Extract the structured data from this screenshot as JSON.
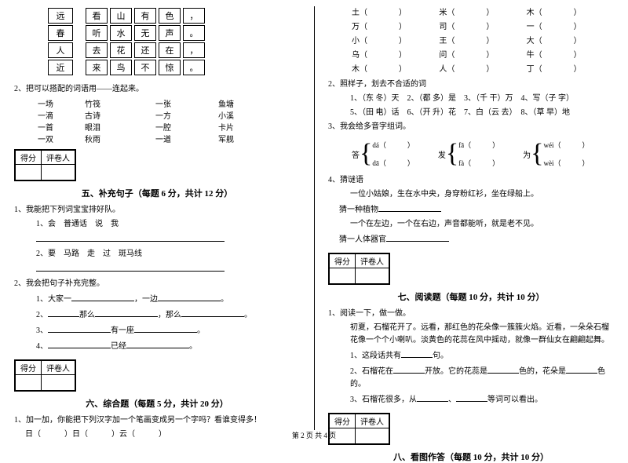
{
  "grid": {
    "rows": [
      {
        "lead": "远",
        "cells": [
          "看",
          "山",
          "有",
          "色",
          "，"
        ]
      },
      {
        "lead": "春",
        "cells": [
          "听",
          "水",
          "无",
          "声",
          "。"
        ]
      },
      {
        "lead": "人",
        "cells": [
          "去",
          "花",
          "还",
          "在",
          "，"
        ]
      },
      {
        "lead": "近",
        "cells": [
          "来",
          "鸟",
          "不",
          "惊",
          "。"
        ]
      }
    ]
  },
  "q2": {
    "title": "2、把可以搭配的词语用——连起来。",
    "rows": [
      [
        "一场",
        "竹筏",
        "一张",
        "鱼塘"
      ],
      [
        "一滴",
        "古诗",
        "一方",
        "小溪"
      ],
      [
        "一首",
        "眼泪",
        "一腔",
        "卡片"
      ],
      [
        "一双",
        "秋雨",
        "一道",
        "军舰"
      ]
    ]
  },
  "sec5": {
    "title": "五、补充句子（每题 6 分，共计 12 分）",
    "q1": "1、我能把下列词宝宝排好队。",
    "q1a": "1、会　普通话　说　我",
    "q1b": "2、要　马路　走　过　斑马线",
    "q2": "2、我会把句子补充完整。",
    "q2_1a": "1、大家一",
    "q2_1b": "，一边",
    "q2_2a": "2、",
    "q2_2b": "那么",
    "q2_2c": "，",
    "q2_2d": "那么",
    "q2_3a": "3、",
    "q2_3b": "有一座",
    "q2_4a": "4、",
    "q2_4b": "已经"
  },
  "sec6": {
    "title": "六、综合题（每题 5 分，共计 20 分）",
    "q1": "1、加一加，你能把下列汉字加一个笔画变成另一个字吗？看谁变得多！",
    "q1l": "日（　　　）日（　　　）云（　　　）"
  },
  "right": {
    "pairs": [
      [
        "土（　　　　）",
        "米（　　　　）",
        "木（　　　　）"
      ],
      [
        "万（　　　　）",
        "司（　　　　）",
        "一（　　　　）"
      ],
      [
        "小（　　　　）",
        "王（　　　　）",
        "大（　　　　）"
      ],
      [
        "乌（　　　　）",
        "问（　　　　）",
        "牛（　　　　）"
      ],
      [
        "木（　　　　）",
        "人（　　　　）",
        "丁（　　　　）"
      ]
    ],
    "q2": "2、照样子，划去不合适的词",
    "q2_1": "1、（东 冬）天　2、（都 多）是　3、（千 干）万　4、写（子 字）",
    "q2_2": "5、（田 电）话　6、（开 升）花　7、白（云 去）　8、（草 早）地",
    "q3": "3、我会给多音字组词。",
    "pinyin": [
      {
        "han": "答",
        "a": "dá（　　　）",
        "b": "dā（　　　）"
      },
      {
        "han": "发",
        "a": "fā（　　　）",
        "b": "fà（　　　）"
      },
      {
        "han": "为",
        "a": "wéi（　　　）",
        "b": "wèi（　　　）"
      }
    ],
    "q4": "4、猜谜语",
    "q4_1": "一位小姑娘，生在水中央，身穿粉红衫，坐在绿船上。",
    "q4_2": "猜一种植物",
    "q4_3": "一个在左边，一个在右边，声音都能听，就是老不见。",
    "q4_4": "猜一人体器官"
  },
  "sec7": {
    "title": "七、阅读题（每题 10 分，共计 10 分）",
    "q1": "1、阅读一下，做一做。",
    "para": "初夏，石榴花开了。远看，那红色的花朵像一簇簇火焰。近看，一朵朵石榴花像一个个小喇叭。淡黄色的花蕊在风中摇动，就像一群仙女在翩翩起舞。",
    "q1_1a": "1、这段话共有",
    "q1_1b": "句。",
    "q1_2a": "2、石榴花在",
    "q1_2b": "开放。它的花蕊是",
    "q1_2c": "色的，花朵是",
    "q1_2d": "色的。",
    "q1_3a": "3、石榴花很多，从",
    "q1_3b": "、",
    "q1_3c": "等词可以看出。"
  },
  "sec8": {
    "title": "八、看图作答（每题 10 分，共计 10 分）"
  },
  "score": {
    "h1": "得分",
    "h2": "评卷人"
  },
  "footer": "第 2 页 共 4 页"
}
